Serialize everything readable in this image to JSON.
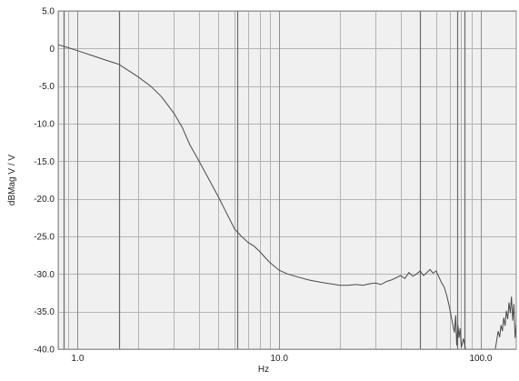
{
  "chart_data": {
    "type": "line",
    "title": "",
    "xlabel": "Hz",
    "ylabel": "dBMag  V / V",
    "xscale": "log",
    "xlim": [
      0.8,
      150
    ],
    "ylim": [
      -40,
      5
    ],
    "grid": true,
    "legend": "none",
    "x_ticks": [
      {
        "value": 1,
        "label": "1.0"
      },
      {
        "value": 10,
        "label": "10.0"
      },
      {
        "value": 100,
        "label": "100.0"
      }
    ],
    "y_ticks": [
      {
        "value": 5,
        "label": "5.0"
      },
      {
        "value": 0,
        "label": "0"
      },
      {
        "value": -5,
        "label": "-5.0"
      },
      {
        "value": -10,
        "label": "-10.0"
      },
      {
        "value": -15,
        "label": "-15.0"
      },
      {
        "value": -20,
        "label": "-20.0"
      },
      {
        "value": -25,
        "label": "-25.0"
      },
      {
        "value": -30,
        "label": "-30.0"
      },
      {
        "value": -35,
        "label": "-35.0"
      },
      {
        "value": -40,
        "label": "-40.0"
      }
    ],
    "minor_x_gridlines": [
      0.8,
      0.9,
      2,
      3,
      4,
      5,
      6,
      7,
      8,
      9,
      20,
      30,
      40,
      50,
      60,
      70,
      80,
      90
    ],
    "emphasized_x_gridlines": [
      0.85,
      1.6,
      6.2,
      50,
      76,
      83
    ],
    "series": [
      {
        "color": "#4a4a4a",
        "points": [
          [
            0.8,
            0.5
          ],
          [
            0.9,
            0.1
          ],
          [
            1.0,
            -0.3
          ],
          [
            1.2,
            -1.0
          ],
          [
            1.4,
            -1.6
          ],
          [
            1.6,
            -2.1
          ],
          [
            1.8,
            -3.0
          ],
          [
            2.0,
            -3.8
          ],
          [
            2.3,
            -5.0
          ],
          [
            2.6,
            -6.4
          ],
          [
            3.0,
            -8.6
          ],
          [
            3.3,
            -10.5
          ],
          [
            3.6,
            -12.8
          ],
          [
            4.0,
            -15.0
          ],
          [
            4.5,
            -17.5
          ],
          [
            5.0,
            -19.8
          ],
          [
            5.5,
            -22.0
          ],
          [
            6.0,
            -24.0
          ],
          [
            6.5,
            -25.0
          ],
          [
            7.0,
            -25.8
          ],
          [
            7.5,
            -26.3
          ],
          [
            8.0,
            -27.0
          ],
          [
            8.5,
            -27.8
          ],
          [
            9.0,
            -28.5
          ],
          [
            10.0,
            -29.5
          ],
          [
            11.0,
            -30.0
          ],
          [
            12.0,
            -30.3
          ],
          [
            14.0,
            -30.8
          ],
          [
            16.0,
            -31.1
          ],
          [
            18.0,
            -31.3
          ],
          [
            20.0,
            -31.5
          ],
          [
            22.0,
            -31.5
          ],
          [
            24.0,
            -31.4
          ],
          [
            26.0,
            -31.5
          ],
          [
            28.0,
            -31.3
          ],
          [
            30.0,
            -31.2
          ],
          [
            32.0,
            -31.4
          ],
          [
            34.0,
            -31.0
          ],
          [
            36.0,
            -30.8
          ],
          [
            38.0,
            -30.5
          ],
          [
            40.0,
            -30.2
          ],
          [
            42.0,
            -30.6
          ],
          [
            44.0,
            -29.8
          ],
          [
            46.0,
            -30.3
          ],
          [
            48.0,
            -30.0
          ],
          [
            50.0,
            -29.6
          ],
          [
            52.0,
            -30.2
          ],
          [
            54.0,
            -29.8
          ],
          [
            56.0,
            -29.4
          ],
          [
            58.0,
            -29.9
          ],
          [
            60.0,
            -29.6
          ],
          [
            62.0,
            -30.4
          ],
          [
            64.0,
            -31.2
          ],
          [
            66.0,
            -31.8
          ],
          [
            68.0,
            -33.0
          ],
          [
            70.0,
            -34.5
          ],
          [
            72.0,
            -36.2
          ],
          [
            74.0,
            -37.8
          ],
          [
            75.0,
            -35.5
          ],
          [
            76.0,
            -39.5
          ],
          [
            77.0,
            -36.8
          ],
          [
            78.0,
            -38.5
          ],
          [
            79.0,
            -37.2
          ],
          [
            80.0,
            -39.8
          ],
          [
            82.0,
            -38.6
          ],
          [
            84.0,
            -40.0
          ]
        ]
      },
      {
        "color": "#4a4a4a",
        "points": [
          [
            118.0,
            -40.0
          ],
          [
            120.0,
            -38.8
          ],
          [
            122.0,
            -37.6
          ],
          [
            124.0,
            -38.4
          ],
          [
            126.0,
            -36.8
          ],
          [
            128.0,
            -37.6
          ],
          [
            130.0,
            -35.8
          ],
          [
            132.0,
            -36.9
          ],
          [
            134.0,
            -34.9
          ],
          [
            136.0,
            -36.0
          ],
          [
            138.0,
            -33.8
          ],
          [
            140.0,
            -35.2
          ],
          [
            142.0,
            -33.0
          ],
          [
            144.0,
            -36.2
          ],
          [
            146.0,
            -34.0
          ],
          [
            148.0,
            -38.5
          ],
          [
            150.0,
            -36.5
          ]
        ]
      }
    ]
  }
}
